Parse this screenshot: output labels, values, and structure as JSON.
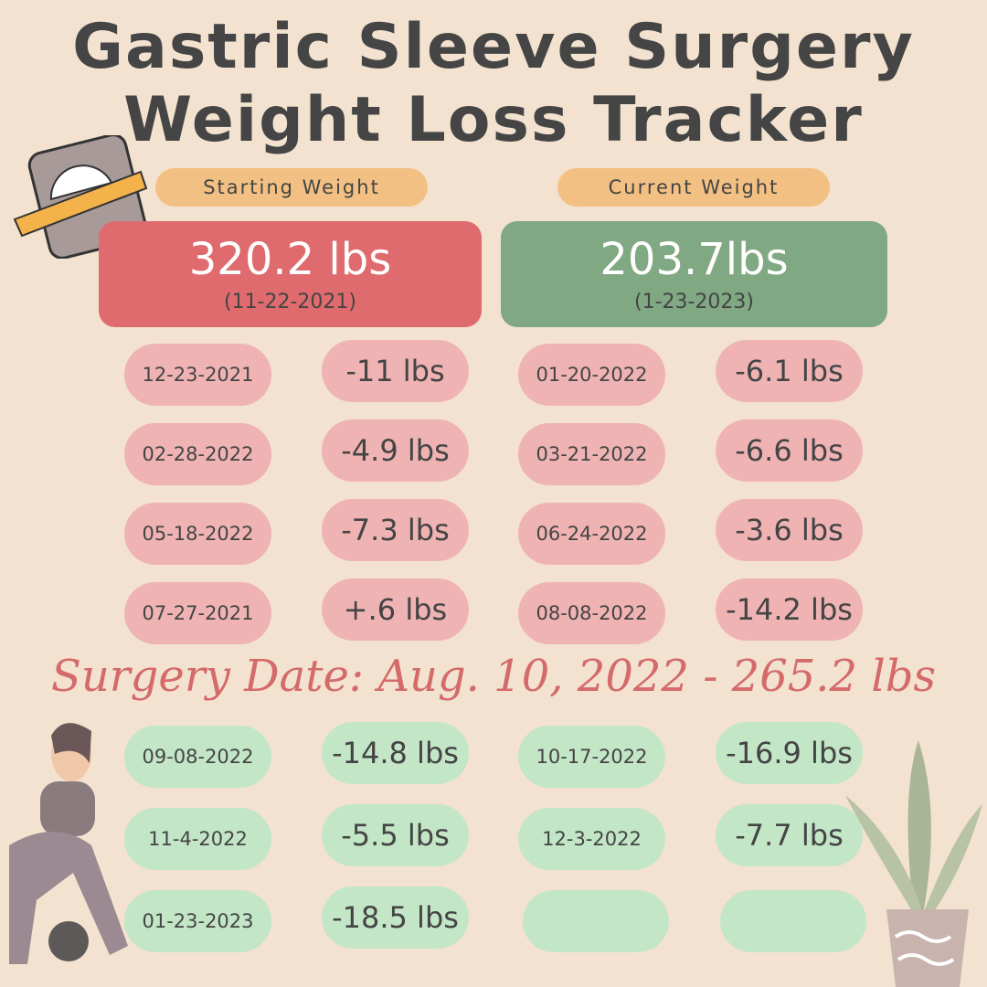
{
  "header": {
    "title_line1": "Gastric Sleeve Surgery",
    "title_line2": "Weight Loss Tracker"
  },
  "starting": {
    "label": "Starting Weight",
    "weight": "320.2 lbs",
    "date": "(11-22-2021)"
  },
  "current": {
    "label": "Current Weight",
    "weight": "203.7lbs",
    "date": "(1-23-2023)"
  },
  "before_surgery": [
    {
      "date": "12-23-2021",
      "change": "-11 lbs"
    },
    {
      "date": "01-20-2022",
      "change": "-6.1 lbs"
    },
    {
      "date": "02-28-2022",
      "change": "-4.9 lbs"
    },
    {
      "date": "03-21-2022",
      "change": "-6.6 lbs"
    },
    {
      "date": "05-18-2022",
      "change": "-7.3 lbs"
    },
    {
      "date": "06-24-2022",
      "change": "-3.6 lbs"
    },
    {
      "date": "07-27-2021",
      "change": "+.6 lbs"
    },
    {
      "date": "08-08-2022",
      "change": "-14.2 lbs"
    }
  ],
  "surgery": "Surgery Date: Aug. 10, 2022 - 265.2 lbs",
  "after_surgery": [
    {
      "date": "09-08-2022",
      "change": "-14.8 lbs"
    },
    {
      "date": "10-17-2022",
      "change": "-16.9 lbs"
    },
    {
      "date": "11-4-2022",
      "change": "-5.5 lbs"
    },
    {
      "date": "12-3-2022",
      "change": "-7.7 lbs"
    },
    {
      "date": "01-23-2023",
      "change": "-18.5 lbs"
    }
  ]
}
